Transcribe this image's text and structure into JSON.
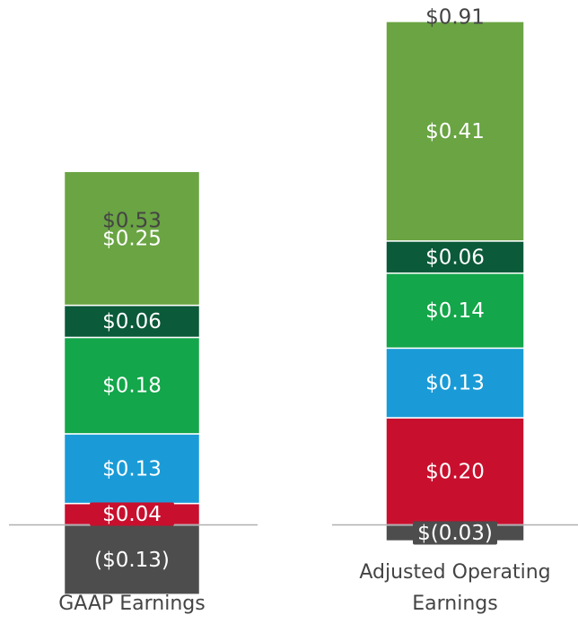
{
  "chart_data": {
    "type": "stacked-bar",
    "categories": [
      "GAAP Earnings",
      "Adjusted Operating Earnings"
    ],
    "series": [
      {
        "color": "#4d4d4d",
        "values": [
          -0.13,
          -0.03
        ],
        "value_labels": [
          "($0.13)",
          "$(0.03)"
        ]
      },
      {
        "color": "#c8102e",
        "values": [
          0.04,
          0.2
        ],
        "value_labels": [
          "$0.04",
          "$0.20"
        ]
      },
      {
        "color": "#1a9bd7",
        "values": [
          0.13,
          0.13
        ],
        "value_labels": [
          "$0.13",
          "$0.13"
        ]
      },
      {
        "color": "#13a64a",
        "values": [
          0.18,
          0.14
        ],
        "value_labels": [
          "$0.18",
          "$0.14"
        ]
      },
      {
        "color": "#0b5a3a",
        "values": [
          0.06,
          0.06
        ],
        "value_labels": [
          "$0.06",
          "$0.06"
        ]
      },
      {
        "color": "#6aa443",
        "values": [
          0.25,
          0.41
        ],
        "value_labels": [
          "$0.25",
          "$0.41"
        ]
      }
    ],
    "totals": [
      0.53,
      0.91
    ],
    "total_labels": [
      "$0.53",
      "$0.91"
    ],
    "ylim": [
      -0.2,
      0.98
    ]
  }
}
